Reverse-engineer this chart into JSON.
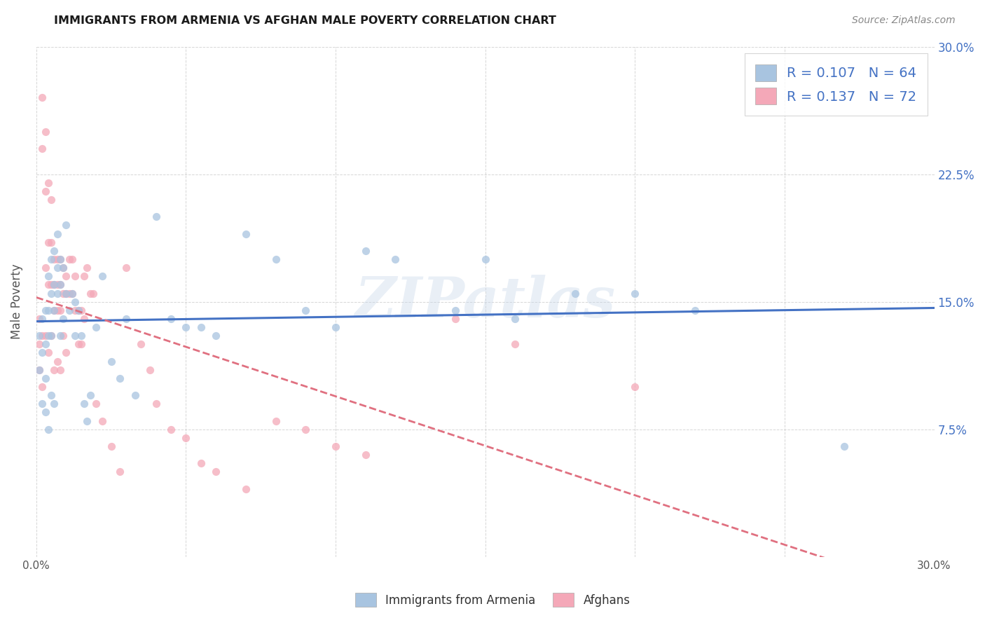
{
  "title": "IMMIGRANTS FROM ARMENIA VS AFGHAN MALE POVERTY CORRELATION CHART",
  "source": "Source: ZipAtlas.com",
  "ylabel": "Male Poverty",
  "xlim": [
    0.0,
    0.3
  ],
  "ylim": [
    0.0,
    0.3
  ],
  "watermark": "ZIPatlas",
  "armenia_color": "#a8c4e0",
  "afghan_color": "#f4a8b8",
  "armenia_line_color": "#4472c4",
  "afghan_line_color": "#e07080",
  "armenia_R": 0.107,
  "armenia_N": 64,
  "afghan_R": 0.137,
  "afghan_N": 72,
  "legend_label_armenia": "Immigrants from Armenia",
  "legend_label_afghan": "Afghans",
  "armenia_x": [
    0.001,
    0.001,
    0.002,
    0.002,
    0.002,
    0.003,
    0.003,
    0.003,
    0.003,
    0.004,
    0.004,
    0.004,
    0.004,
    0.005,
    0.005,
    0.005,
    0.005,
    0.006,
    0.006,
    0.006,
    0.006,
    0.007,
    0.007,
    0.007,
    0.008,
    0.008,
    0.008,
    0.009,
    0.009,
    0.01,
    0.01,
    0.011,
    0.012,
    0.013,
    0.013,
    0.014,
    0.015,
    0.016,
    0.017,
    0.018,
    0.02,
    0.022,
    0.025,
    0.028,
    0.03,
    0.033,
    0.04,
    0.045,
    0.05,
    0.055,
    0.06,
    0.07,
    0.08,
    0.09,
    0.1,
    0.11,
    0.12,
    0.14,
    0.15,
    0.16,
    0.18,
    0.2,
    0.22,
    0.27
  ],
  "armenia_y": [
    0.13,
    0.11,
    0.14,
    0.12,
    0.09,
    0.145,
    0.125,
    0.105,
    0.085,
    0.165,
    0.145,
    0.13,
    0.075,
    0.175,
    0.155,
    0.13,
    0.095,
    0.18,
    0.16,
    0.145,
    0.09,
    0.19,
    0.17,
    0.155,
    0.175,
    0.16,
    0.13,
    0.17,
    0.14,
    0.195,
    0.155,
    0.145,
    0.155,
    0.15,
    0.13,
    0.145,
    0.13,
    0.09,
    0.08,
    0.095,
    0.135,
    0.165,
    0.115,
    0.105,
    0.14,
    0.095,
    0.2,
    0.14,
    0.135,
    0.135,
    0.13,
    0.19,
    0.175,
    0.145,
    0.135,
    0.18,
    0.175,
    0.145,
    0.175,
    0.14,
    0.155,
    0.155,
    0.145,
    0.065
  ],
  "afghan_x": [
    0.001,
    0.001,
    0.001,
    0.002,
    0.002,
    0.002,
    0.002,
    0.003,
    0.003,
    0.003,
    0.003,
    0.004,
    0.004,
    0.004,
    0.004,
    0.005,
    0.005,
    0.005,
    0.005,
    0.006,
    0.006,
    0.006,
    0.006,
    0.007,
    0.007,
    0.007,
    0.007,
    0.008,
    0.008,
    0.008,
    0.008,
    0.009,
    0.009,
    0.009,
    0.01,
    0.01,
    0.01,
    0.011,
    0.011,
    0.012,
    0.012,
    0.013,
    0.013,
    0.014,
    0.014,
    0.015,
    0.015,
    0.016,
    0.016,
    0.017,
    0.018,
    0.019,
    0.02,
    0.022,
    0.025,
    0.028,
    0.03,
    0.035,
    0.038,
    0.04,
    0.045,
    0.05,
    0.055,
    0.06,
    0.07,
    0.08,
    0.09,
    0.1,
    0.11,
    0.14,
    0.16,
    0.2
  ],
  "afghan_y": [
    0.14,
    0.125,
    0.11,
    0.27,
    0.24,
    0.13,
    0.1,
    0.25,
    0.215,
    0.17,
    0.13,
    0.22,
    0.185,
    0.16,
    0.12,
    0.21,
    0.185,
    0.16,
    0.13,
    0.175,
    0.16,
    0.145,
    0.11,
    0.175,
    0.16,
    0.145,
    0.115,
    0.175,
    0.16,
    0.145,
    0.11,
    0.17,
    0.155,
    0.13,
    0.165,
    0.155,
    0.12,
    0.175,
    0.155,
    0.175,
    0.155,
    0.165,
    0.145,
    0.145,
    0.125,
    0.145,
    0.125,
    0.165,
    0.14,
    0.17,
    0.155,
    0.155,
    0.09,
    0.08,
    0.065,
    0.05,
    0.17,
    0.125,
    0.11,
    0.09,
    0.075,
    0.07,
    0.055,
    0.05,
    0.04,
    0.08,
    0.075,
    0.065,
    0.06,
    0.14,
    0.125,
    0.1
  ]
}
